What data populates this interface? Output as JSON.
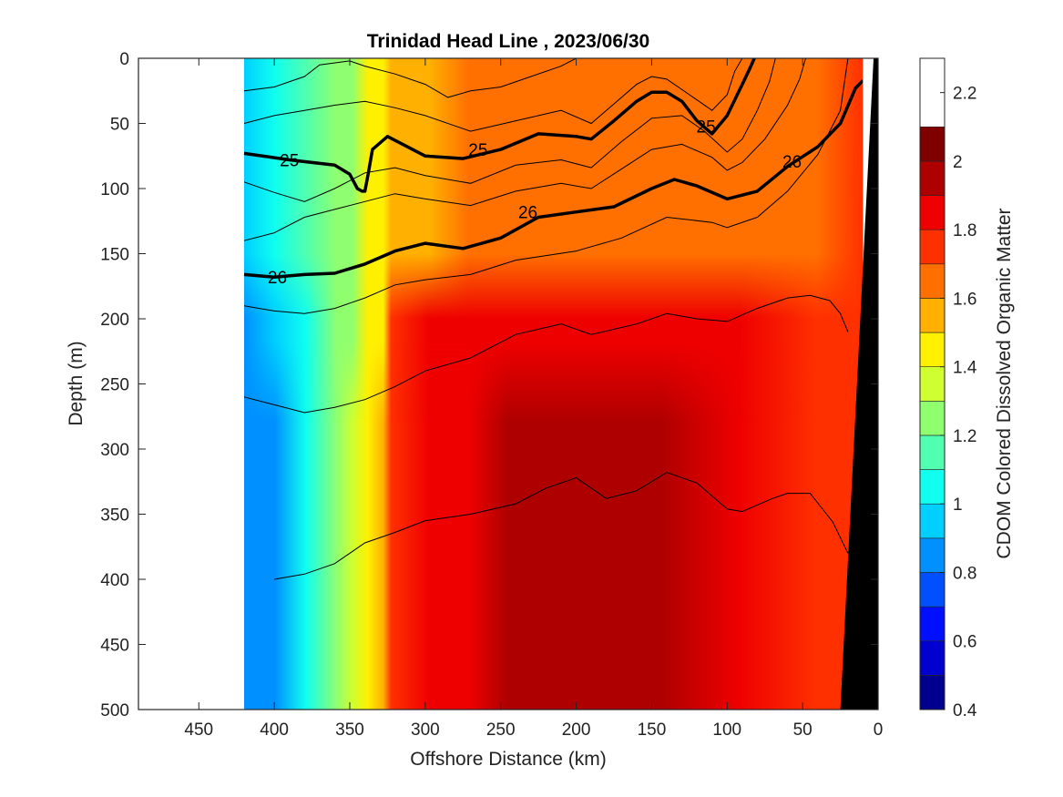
{
  "chart_data": {
    "type": "contourf",
    "title": "Trinidad Head Line , 2023/06/30",
    "xlabel": "Offshore Distance (km)",
    "ylabel": "Depth (m)",
    "colorbar_label": "CDOM Colored Dissolved Organic Matter",
    "xlim": [
      490,
      0
    ],
    "ylim": [
      500,
      0
    ],
    "x_reversed": true,
    "y_reversed": true,
    "x_ticks": [
      450,
      400,
      350,
      300,
      250,
      200,
      150,
      100,
      50,
      0
    ],
    "y_ticks": [
      0,
      50,
      100,
      150,
      200,
      250,
      300,
      350,
      400,
      450,
      500
    ],
    "colorbar": {
      "min": 0.4,
      "max": 2.3,
      "ticks": [
        0.4,
        0.6,
        0.8,
        1,
        1.2,
        1.4,
        1.6,
        1.8,
        2,
        2.2
      ],
      "levels": [
        0.4,
        0.5,
        0.6,
        0.7,
        0.8,
        0.9,
        1.0,
        1.1,
        1.2,
        1.3,
        1.4,
        1.5,
        1.6,
        1.7,
        1.8,
        1.9,
        2.0,
        2.1,
        2.2,
        2.3
      ],
      "colors": [
        "#00008f",
        "#0000cf",
        "#0010ff",
        "#0050ff",
        "#0090ff",
        "#00cfff",
        "#10ffef",
        "#50ffaf",
        "#90ff6f",
        "#cfff30",
        "#fff000",
        "#ffb000",
        "#ff7000",
        "#ff3000",
        "#ef0000",
        "#af0000",
        "#800000"
      ]
    },
    "data_extent_km": [
      420,
      10
    ],
    "field_profiles": {
      "x_km": [
        420,
        400,
        380,
        360,
        350,
        340,
        330,
        325,
        300,
        275,
        250,
        200,
        150,
        100,
        50,
        20
      ],
      "cdom_surface_0_100m": [
        1.05,
        1.1,
        1.2,
        1.3,
        1.4,
        1.55,
        1.6,
        1.65,
        1.7,
        1.75,
        1.8,
        1.85,
        1.85,
        1.85,
        1.85,
        1.9
      ],
      "cdom_mid_150_300m": [
        0.95,
        1.0,
        1.15,
        1.3,
        1.4,
        1.55,
        1.6,
        1.9,
        2.0,
        2.05,
        2.05,
        2.05,
        2.0,
        2.0,
        1.9,
        1.9
      ],
      "cdom_deep_300_500m": [
        0.85,
        0.95,
        1.1,
        1.3,
        1.45,
        1.6,
        1.7,
        1.95,
        2.0,
        2.05,
        2.1,
        2.1,
        2.1,
        2.0,
        1.95,
        1.9
      ]
    },
    "density_contours": [
      {
        "level": 25,
        "label": "25",
        "bold": true,
        "x_km": [
          420,
          390,
          360,
          350,
          345,
          342,
          340,
          338,
          335,
          325,
          300,
          275,
          250,
          225,
          200,
          190,
          175,
          160,
          150,
          140,
          130,
          120,
          110,
          100,
          90,
          85,
          82
        ],
        "depth_m": [
          73,
          78,
          82,
          89,
          100,
          102,
          102,
          90,
          70,
          60,
          75,
          77,
          70,
          58,
          60,
          62,
          48,
          33,
          26,
          26,
          33,
          48,
          58,
          44,
          20,
          8,
          0
        ]
      },
      {
        "level": 26,
        "label": "26",
        "bold": true,
        "x_km": [
          420,
          400,
          380,
          360,
          340,
          320,
          300,
          275,
          250,
          225,
          200,
          175,
          150,
          135,
          120,
          100,
          80,
          60,
          40,
          25,
          15,
          10
        ],
        "depth_m": [
          166,
          168,
          166,
          165,
          158,
          148,
          142,
          146,
          138,
          122,
          118,
          114,
          100,
          93,
          98,
          108,
          102,
          83,
          68,
          50,
          23,
          17
        ]
      }
    ],
    "thin_contours": [
      {
        "x_km": [
          420,
          400,
          380,
          370,
          350,
          340,
          320,
          300,
          285,
          270,
          250,
          230,
          210,
          200
        ],
        "depth_m": [
          25,
          22,
          14,
          5,
          2,
          6,
          12,
          20,
          30,
          25,
          22,
          14,
          6,
          0
        ]
      },
      {
        "x_km": [
          420,
          400,
          380,
          360,
          340,
          320,
          300,
          270,
          240,
          210,
          190,
          175,
          160,
          150,
          140,
          125,
          110,
          100,
          95,
          90
        ],
        "depth_m": [
          50,
          44,
          40,
          36,
          33,
          38,
          44,
          56,
          48,
          40,
          50,
          35,
          20,
          14,
          16,
          28,
          40,
          28,
          10,
          0
        ]
      },
      {
        "x_km": [
          420,
          400,
          380,
          360,
          340,
          320,
          300,
          270,
          240,
          210,
          190,
          170,
          150,
          130,
          115,
          100,
          90,
          80,
          72,
          68
        ],
        "depth_m": [
          95,
          103,
          110,
          100,
          88,
          84,
          90,
          96,
          82,
          78,
          84,
          64,
          46,
          44,
          56,
          72,
          62,
          40,
          18,
          0
        ]
      },
      {
        "x_km": [
          420,
          400,
          380,
          360,
          340,
          320,
          300,
          270,
          240,
          210,
          190,
          170,
          150,
          130,
          110,
          100,
          90,
          75,
          60,
          52,
          48
        ],
        "depth_m": [
          140,
          134,
          122,
          116,
          110,
          104,
          108,
          113,
          102,
          96,
          100,
          85,
          70,
          66,
          76,
          86,
          80,
          62,
          36,
          16,
          0
        ]
      },
      {
        "x_km": [
          420,
          400,
          380,
          360,
          340,
          320,
          300,
          270,
          240,
          200,
          170,
          140,
          110,
          100,
          80,
          60,
          40,
          25,
          20
        ],
        "depth_m": [
          190,
          194,
          196,
          192,
          184,
          174,
          170,
          166,
          155,
          148,
          138,
          122,
          126,
          130,
          122,
          102,
          74,
          40,
          0
        ]
      },
      {
        "x_km": [
          420,
          400,
          380,
          360,
          340,
          320,
          300,
          270,
          240,
          210,
          190,
          160,
          140,
          120,
          100,
          80,
          60,
          45,
          32,
          25,
          20
        ],
        "depth_m": [
          260,
          266,
          272,
          268,
          262,
          252,
          240,
          230,
          212,
          204,
          212,
          204,
          196,
          200,
          202,
          192,
          184,
          182,
          186,
          196,
          210
        ]
      },
      {
        "x_km": [
          400,
          380,
          360,
          340,
          320,
          300,
          270,
          240,
          220,
          200,
          180,
          160,
          140,
          120,
          100,
          90,
          70,
          60,
          45,
          30,
          20
        ],
        "depth_m": [
          400,
          396,
          388,
          372,
          364,
          355,
          350,
          342,
          330,
          322,
          338,
          332,
          318,
          326,
          346,
          348,
          338,
          334,
          334,
          356,
          380
        ]
      }
    ],
    "bathymetry": {
      "x_km": [
        25,
        10,
        10
      ],
      "depth_m": [
        500,
        0,
        500
      ],
      "fill": "#000000"
    }
  }
}
